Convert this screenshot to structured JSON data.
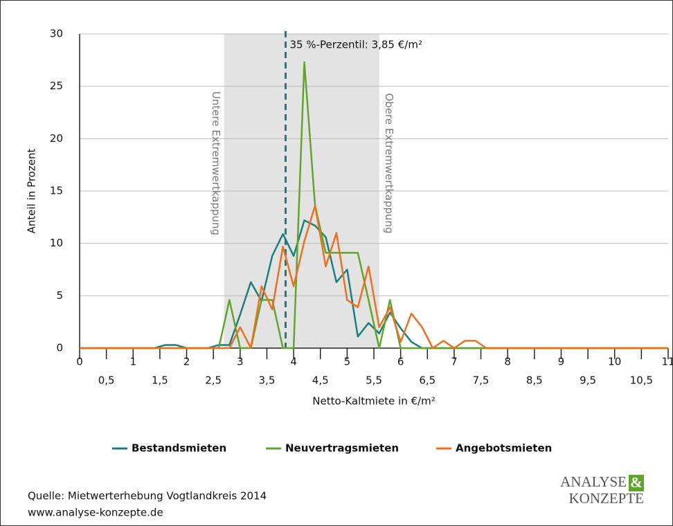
{
  "chart_data": {
    "type": "line",
    "y_label": "Anteil in Prozent",
    "x_label": "Netto-Kaltmiete in €/m²",
    "x": [
      0,
      0.2,
      0.4,
      0.6,
      0.8,
      1,
      1.2,
      1.4,
      1.6,
      1.8,
      2,
      2.2,
      2.4,
      2.6,
      2.8,
      3,
      3.2,
      3.4,
      3.6,
      3.8,
      4,
      4.2,
      4.4,
      4.6,
      4.8,
      5,
      5.2,
      5.4,
      5.6,
      5.8,
      6,
      6.2,
      6.4,
      6.6,
      6.8,
      7,
      7.2,
      7.4,
      7.6,
      7.8,
      8,
      8.2,
      8.4,
      8.6,
      8.8,
      9,
      9.2,
      9.4,
      9.6,
      9.8,
      10,
      10.2,
      10.4,
      10.6,
      10.8,
      11
    ],
    "series": [
      {
        "name": "Bestandsmieten",
        "color": "#1a7f7a",
        "values": [
          0,
          0,
          0,
          0,
          0,
          0,
          0,
          0,
          0.3,
          0.3,
          0,
          0,
          0,
          0.3,
          0.3,
          3.2,
          6.3,
          4.5,
          8.8,
          10.9,
          8.8,
          12.2,
          11.7,
          10.6,
          6.3,
          7.5,
          1.1,
          2.4,
          1.4,
          3.4,
          1.9,
          0.6,
          0,
          0,
          0,
          0,
          0,
          0,
          0,
          0,
          0,
          0,
          0,
          0,
          0,
          0,
          0,
          0,
          0,
          0,
          0,
          0,
          0,
          0,
          0,
          0
        ]
      },
      {
        "name": "Neuvertragsmieten",
        "color": "#5fa52a",
        "values": [
          0,
          0,
          0,
          0,
          0,
          0,
          0,
          0,
          0,
          0,
          0,
          0,
          0,
          0,
          4.6,
          0,
          0,
          4.6,
          4.6,
          0,
          0,
          27.3,
          13.6,
          9.1,
          9.1,
          9.1,
          9.1,
          4.6,
          0,
          4.6,
          0,
          0,
          0,
          0,
          0,
          0,
          0,
          0,
          0,
          0,
          0,
          0,
          0,
          0,
          0,
          0,
          0,
          0,
          0,
          0,
          0,
          0,
          0,
          0,
          0,
          0
        ]
      },
      {
        "name": "Angebotsmieten",
        "color": "#ee6f1c",
        "values": [
          0,
          0,
          0,
          0,
          0,
          0,
          0,
          0,
          0,
          0,
          0,
          0,
          0,
          0,
          0,
          2.0,
          0,
          5.9,
          3.7,
          9.7,
          5.9,
          10.2,
          13.6,
          7.8,
          11.0,
          4.6,
          3.9,
          7.8,
          2.0,
          3.9,
          0.6,
          3.3,
          2.0,
          0,
          0.7,
          0,
          0.7,
          0.7,
          0,
          0,
          0,
          0,
          0,
          0,
          0,
          0,
          0,
          0,
          0,
          0,
          0,
          0,
          0,
          0,
          0,
          0
        ]
      }
    ],
    "xlim": [
      0,
      11
    ],
    "xticks": [
      0,
      1,
      2,
      3,
      4,
      5,
      6,
      7,
      8,
      9,
      10,
      11
    ],
    "xticks_minor": [
      {
        "value": 0.5,
        "label": "0,5"
      },
      {
        "value": 1.5,
        "label": "1,5"
      },
      {
        "value": 2.5,
        "label": "2,5"
      },
      {
        "value": 3.5,
        "label": "3,5"
      },
      {
        "value": 4.5,
        "label": "4,5"
      },
      {
        "value": 5.5,
        "label": "5,5"
      },
      {
        "value": 6.5,
        "label": "6,5"
      },
      {
        "value": 7.5,
        "label": "7,5"
      },
      {
        "value": 8.5,
        "label": "8,5"
      },
      {
        "value": 9.5,
        "label": "9,5"
      },
      {
        "value": 10.5,
        "label": "10,5"
      }
    ],
    "ylim": [
      0,
      30
    ],
    "yticks": [
      0,
      5,
      10,
      15,
      20,
      25,
      30
    ],
    "grid": true,
    "band": {
      "from": 2.7,
      "to": 5.6,
      "color": "#e3e3e3",
      "left_label": "Untere Extremwertkappung",
      "right_label": "Obere Extremwertkappung"
    },
    "vline": {
      "value": 3.85,
      "label": "35 %-Perzentil: 3,85 €/m²",
      "color": "#1a7f7a"
    }
  },
  "footer": {
    "source": "Quelle: Mietwerterhebung Vogtlandkreis 2014",
    "url": "www.analyse-konzepte.de",
    "logo_line1": "ANALYSE",
    "logo_amp": "&",
    "logo_line2": "KONZEPTE"
  }
}
